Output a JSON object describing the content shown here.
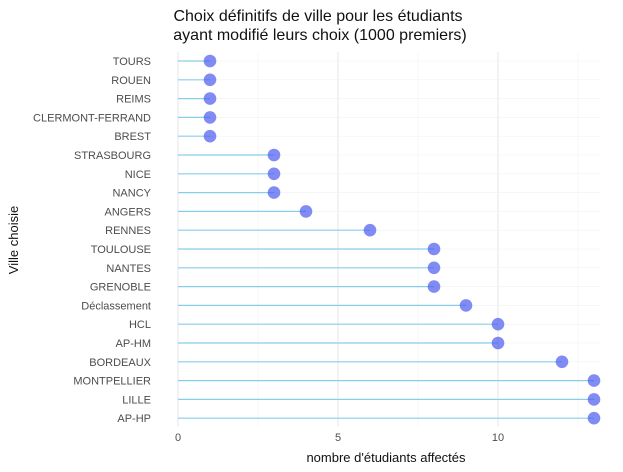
{
  "chart_data": {
    "type": "lollipop",
    "title": [
      "Choix définitifs de ville pour les étudiants",
      "ayant modifié leurs choix (1000 premiers)"
    ],
    "xlabel": "nombre d'étudiants affectés",
    "ylabel": "Ville choisie",
    "xlim": [
      0,
      13.5
    ],
    "xticks": [
      0,
      5,
      10
    ],
    "categories": [
      "TOURS",
      "ROUEN",
      "REIMS",
      "CLERMONT-FERRAND",
      "BREST",
      "STRASBOURG",
      "NICE",
      "NANCY",
      "ANGERS",
      "RENNES",
      "TOULOUSE",
      "NANTES",
      "GRENOBLE",
      "Déclassement",
      "HCL",
      "AP-HM",
      "BORDEAUX",
      "MONTPELLIER",
      "LILLE",
      "AP-HP"
    ],
    "values": [
      1,
      1,
      1,
      1,
      1,
      3,
      3,
      3,
      4,
      6,
      8,
      8,
      8,
      9,
      10,
      10,
      12,
      13,
      13,
      13
    ],
    "grid": true,
    "colors": {
      "stem": "#87ceeb",
      "point": "#4f5ff0",
      "grid_major": "#e6e6e6",
      "grid_minor": "#f2f2f2"
    }
  }
}
